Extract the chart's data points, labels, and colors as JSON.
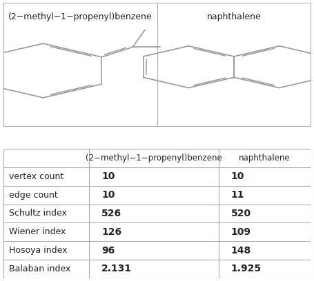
{
  "col1_name": "(2−methyl−1−propenyl)benzene",
  "col2_name": "naphthalene",
  "row_labels": [
    "vertex count",
    "edge count",
    "Schultz index",
    "Wiener index",
    "Hosoya index",
    "Balaban index"
  ],
  "col1_values": [
    "10",
    "10",
    "526",
    "126",
    "96",
    "2.131"
  ],
  "col2_values": [
    "10",
    "11",
    "520",
    "109",
    "148",
    "1.925"
  ],
  "table_header_fontsize": 11,
  "table_cell_fontsize": 12,
  "row_label_fontsize": 11,
  "bg_color": "#ffffff",
  "line_color": "#aaaaaa",
  "text_color": "#222222",
  "bold_values": true
}
